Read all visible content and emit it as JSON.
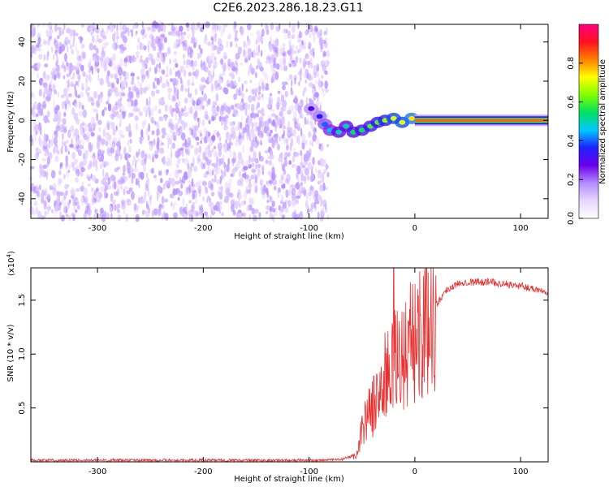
{
  "figure": {
    "title": "C2E6.2023.286.18.23.G11"
  },
  "chart_data": [
    {
      "type": "heatmap",
      "xlabel": "Height of straight line (km)",
      "ylabel": "Frequency (Hz)",
      "xlim": [
        -363,
        126
      ],
      "ylim": [
        -50,
        49
      ],
      "xticks": [
        -300,
        -200,
        -100,
        0,
        100
      ],
      "yticks": [
        -40,
        -20,
        0,
        20,
        40
      ],
      "colorbar": {
        "label": "Normalized spectral amplitude",
        "range": [
          0,
          1
        ],
        "ticks": [
          "0.0",
          "0.2",
          "0.4",
          "0.6",
          "0.8"
        ],
        "colors": [
          "#ffffff",
          "#e8d6ff",
          "#b48cff",
          "#6a00e8",
          "#2020ff",
          "#00c8ff",
          "#00e060",
          "#80ff00",
          "#ffff00",
          "#ff8000",
          "#ff1020",
          "#ff0080"
        ]
      },
      "noise_region_x": [
        -363,
        -82
      ],
      "noise_level": 0.15,
      "transition_track": [
        {
          "x": -98,
          "f": 6,
          "amp": 0.3
        },
        {
          "x": -90,
          "f": 2,
          "amp": 0.35
        },
        {
          "x": -85,
          "f": -2,
          "amp": 0.4
        },
        {
          "x": -80,
          "f": -5,
          "amp": 0.45
        },
        {
          "x": -72,
          "f": -6,
          "amp": 0.5
        },
        {
          "x": -65,
          "f": -3,
          "amp": 0.5
        },
        {
          "x": -58,
          "f": -6,
          "amp": 0.55
        },
        {
          "x": -50,
          "f": -5,
          "amp": 0.55
        },
        {
          "x": -42,
          "f": -3,
          "amp": 0.6
        },
        {
          "x": -35,
          "f": -1,
          "amp": 0.6
        },
        {
          "x": -28,
          "f": 0,
          "amp": 0.65
        },
        {
          "x": -20,
          "f": 1,
          "amp": 0.7
        },
        {
          "x": -12,
          "f": -1,
          "amp": 0.7
        },
        {
          "x": -3,
          "f": 1,
          "amp": 0.75
        }
      ],
      "carrier": {
        "x_from": 0,
        "x_to": 126,
        "frequency": 0,
        "amplitude": 0.85
      }
    },
    {
      "type": "line",
      "xlabel": "Height of straight line (km)",
      "ylabel": "SNR (10 * v/v)",
      "y_multiplier": "(x10",
      "y_exponent": "4",
      "y_multiplier_close": ")",
      "xlim": [
        -363,
        126
      ],
      "ylim": [
        0,
        18000
      ],
      "xticks": [
        -300,
        -200,
        -100,
        0,
        100
      ],
      "ytick_values": [
        5000,
        10000,
        15000
      ],
      "ytick_labels": [
        "0.5",
        "1.0",
        "1.5"
      ],
      "color": "#e83030",
      "series": [
        {
          "envelope": [
            {
              "x": -363,
              "y": 150
            },
            {
              "x": -200,
              "y": 150
            },
            {
              "x": -100,
              "y": 150
            },
            {
              "x": -70,
              "y": 200
            },
            {
              "x": -55,
              "y": 600
            },
            {
              "x": -50,
              "y": 3000
            },
            {
              "x": -45,
              "y": 4500
            },
            {
              "x": -40,
              "y": 5000
            },
            {
              "x": -35,
              "y": 6000
            },
            {
              "x": -30,
              "y": 7500
            },
            {
              "x": -20,
              "y": 9000
            },
            {
              "x": -10,
              "y": 10000
            },
            {
              "x": 0,
              "y": 11500
            },
            {
              "x": 10,
              "y": 13000
            },
            {
              "x": 20,
              "y": 14500
            },
            {
              "x": 30,
              "y": 16000
            },
            {
              "x": 45,
              "y": 16700
            },
            {
              "x": 70,
              "y": 16700
            },
            {
              "x": 100,
              "y": 16300
            },
            {
              "x": 126,
              "y": 15800
            }
          ],
          "peak": {
            "x": -20,
            "y": 18000
          }
        }
      ]
    }
  ]
}
